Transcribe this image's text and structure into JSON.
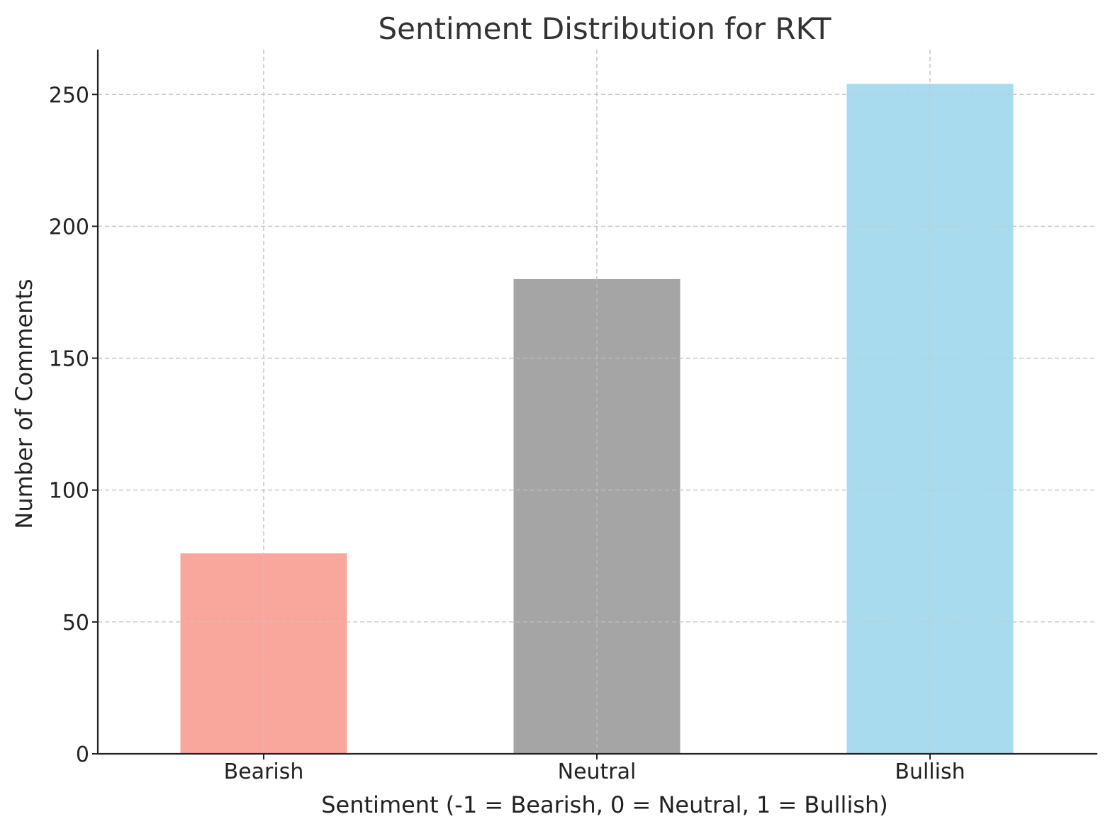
{
  "chart_data": {
    "type": "bar",
    "title": "Sentiment Distribution for RKT",
    "xlabel": "Sentiment (-1 = Bearish, 0 = Neutral, 1 = Bullish)",
    "ylabel": "Number of Comments",
    "categories": [
      "Bearish",
      "Neutral",
      "Bullish"
    ],
    "values": [
      76,
      180,
      254
    ],
    "colors": [
      "#f9a79c",
      "#a5a5a5",
      "#a8dbed"
    ],
    "ylim": [
      0,
      267
    ],
    "yticks": [
      0,
      50,
      100,
      150,
      200,
      250
    ],
    "grid": true
  }
}
